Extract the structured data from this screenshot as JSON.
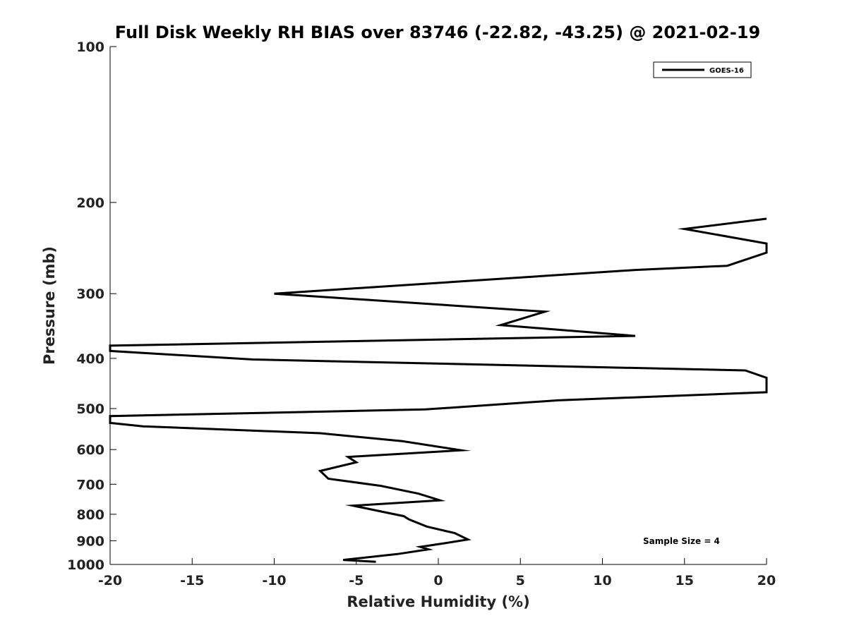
{
  "chart_data": {
    "type": "line",
    "title": "Full Disk Weekly RH BIAS over 83746 (-22.82, -43.25) @ 2021-02-19",
    "xlabel": "Relative Humidity (%)",
    "ylabel": "Pressure (mb)",
    "xlim": [
      -20,
      20
    ],
    "ylim": [
      100,
      1000
    ],
    "yscale": "log",
    "x_ticks": [
      -20,
      -15,
      -10,
      -5,
      0,
      5,
      10,
      15,
      20
    ],
    "x_tick_labels": [
      "-20",
      "-15",
      "-10",
      "-5",
      "0",
      "5",
      "10",
      "15",
      "20"
    ],
    "y_ticks": [
      100,
      200,
      300,
      400,
      500,
      600,
      700,
      800,
      900,
      1000
    ],
    "y_tick_labels": [
      "100",
      "200",
      "300",
      "400",
      "500",
      "600",
      "700",
      "800",
      "900",
      "1000"
    ],
    "legend_position": "top-right",
    "annotation": "Sample Size = 4",
    "series": [
      {
        "name": "GOES-16",
        "color": "#000000",
        "x": [
          20,
          15,
          20,
          20,
          17.6,
          12,
          -10,
          6.5,
          3.8,
          12,
          -20,
          -20,
          -11.3,
          18.7,
          20,
          20,
          7.3,
          -0.8,
          -20,
          -20,
          -18,
          -7.2,
          -2.2,
          1.4,
          -5.5,
          -5,
          -7.2,
          -6.7,
          -3.5,
          -1.2,
          0.1,
          -5.2,
          -2.1,
          -1.8,
          -0.7,
          1,
          1.8,
          0.4,
          -1.1,
          -0.6,
          -2.5,
          -5.8,
          -3.8
        ],
        "y": [
          215,
          225,
          240,
          250,
          265,
          270,
          300,
          325,
          345,
          362,
          378,
          387,
          402,
          422,
          436,
          465,
          482,
          502,
          517,
          533,
          541,
          558,
          578,
          602,
          620,
          635,
          660,
          683,
          705,
          730,
          752,
          770,
          807,
          818,
          845,
          870,
          895,
          910,
          925,
          935,
          955,
          980,
          988
        ]
      }
    ]
  }
}
